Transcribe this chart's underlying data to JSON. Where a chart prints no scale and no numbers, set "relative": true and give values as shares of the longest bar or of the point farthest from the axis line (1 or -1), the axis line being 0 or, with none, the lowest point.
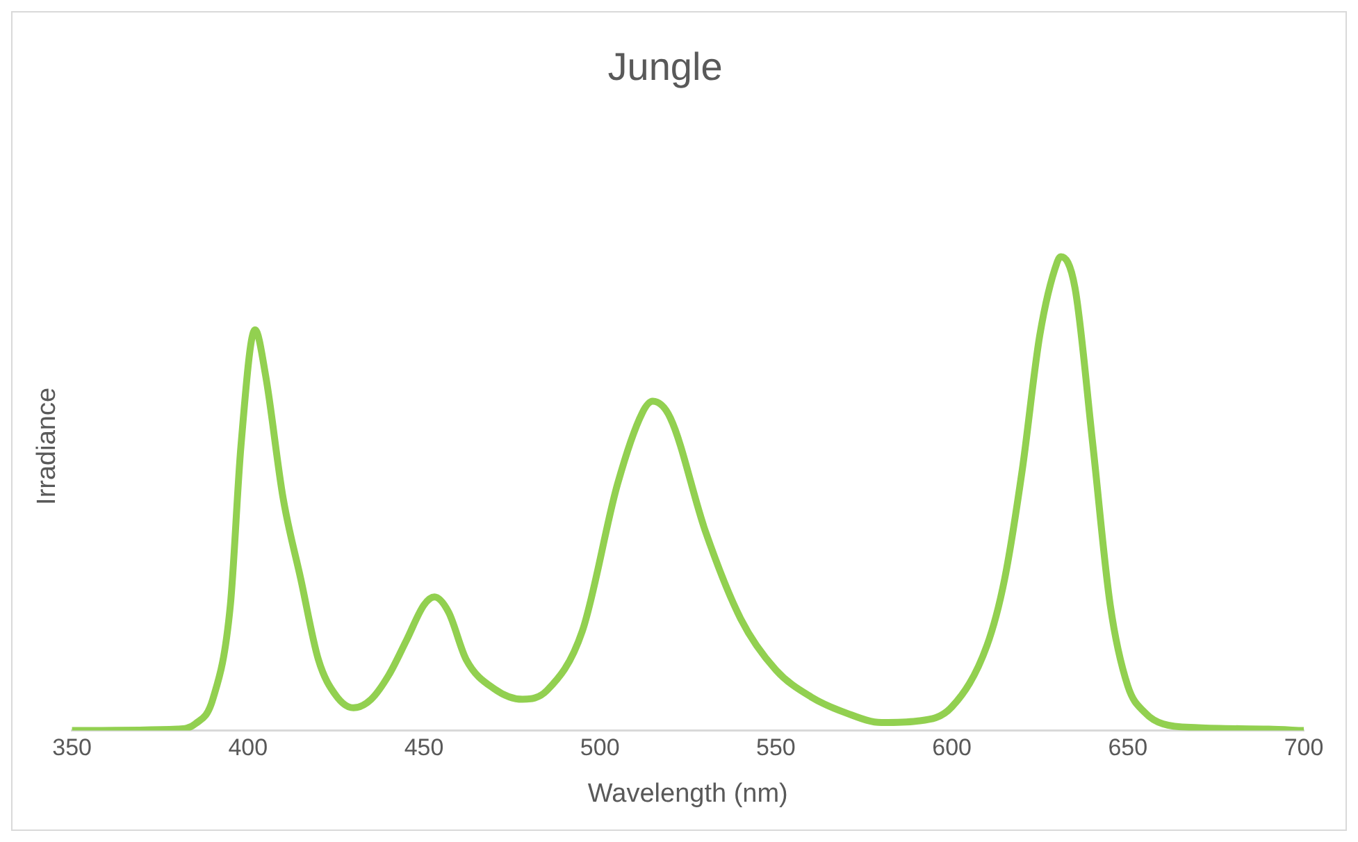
{
  "chart_data": {
    "type": "line",
    "title": "Jungle",
    "xlabel": "Wavelength (nm)",
    "ylabel": "Irradiance",
    "relative": true,
    "xlim": [
      350,
      700
    ],
    "xticks": [
      350,
      400,
      450,
      500,
      550,
      600,
      650,
      700
    ],
    "grid": false,
    "legend": false,
    "marker": "none",
    "line_style": "solid",
    "series": [
      {
        "color": "#92d050",
        "x": [
          350,
          380,
          385,
          390,
          395,
          398,
          402,
          405,
          410,
          415,
          420,
          425,
          430,
          435,
          440,
          445,
          450,
          453,
          457,
          462,
          470,
          478,
          485,
          495,
          505,
          512,
          515,
          520,
          530,
          540,
          550,
          560,
          570,
          580,
          590,
          600,
          610,
          615,
          620,
          625,
          630,
          631,
          635,
          640,
          645,
          650,
          655,
          660,
          670,
          690,
          700
        ],
        "values": [
          0,
          0.003,
          0.014,
          0.066,
          0.265,
          0.6,
          0.846,
          0.75,
          0.49,
          0.32,
          0.15,
          0.074,
          0.048,
          0.066,
          0.117,
          0.19,
          0.265,
          0.282,
          0.25,
          0.15,
          0.088,
          0.066,
          0.085,
          0.21,
          0.52,
          0.67,
          0.695,
          0.66,
          0.42,
          0.236,
          0.128,
          0.071,
          0.037,
          0.017,
          0.02,
          0.05,
          0.18,
          0.32,
          0.55,
          0.835,
          0.99,
          1,
          0.934,
          0.607,
          0.265,
          0.094,
          0.037,
          0.014,
          0.006,
          0.003,
          0
        ]
      }
    ]
  }
}
